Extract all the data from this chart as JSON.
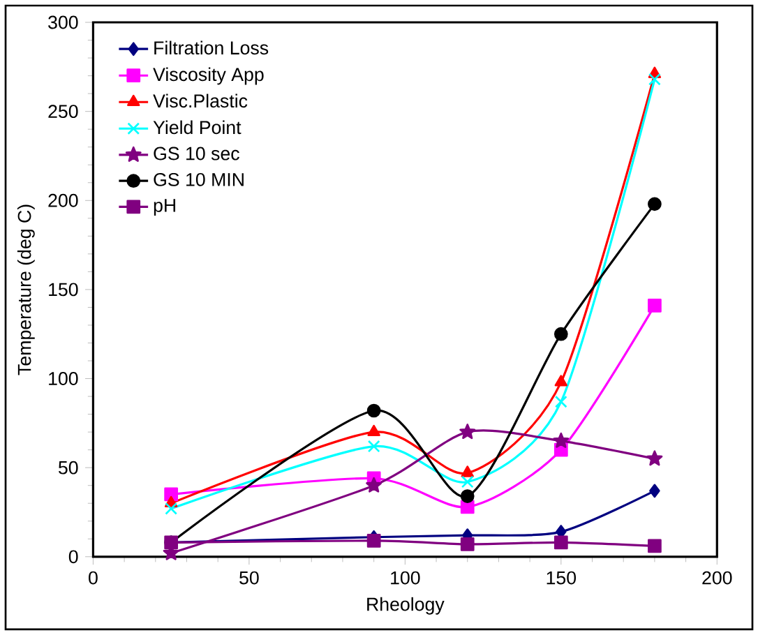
{
  "chart_data": {
    "type": "line",
    "xlabel": "Rheology",
    "ylabel": "Temperature (deg C)",
    "x": [
      25,
      90,
      120,
      150,
      180
    ],
    "xlim": [
      0,
      200
    ],
    "xticks": [
      0,
      50,
      100,
      150,
      200
    ],
    "ylim": [
      0,
      300
    ],
    "yticks": [
      0,
      50,
      100,
      150,
      200,
      250,
      300
    ],
    "grid": false,
    "legend": "top left",
    "line_style": "solid",
    "series": [
      {
        "name": "Filtration Loss",
        "color": "#000080",
        "marker": "diamond",
        "values": [
          8,
          11,
          12,
          14,
          37
        ]
      },
      {
        "name": "Viscosity App",
        "color": "#ff00ff",
        "marker": "square",
        "values": [
          35,
          44,
          28,
          60,
          141
        ]
      },
      {
        "name": "Visc.Plastic",
        "color": "#ff0000",
        "marker": "triangle",
        "values": [
          30,
          70,
          47,
          98,
          271
        ]
      },
      {
        "name": "Yield Point",
        "color": "#00ffff",
        "marker": "cross",
        "values": [
          27,
          62,
          42,
          87,
          268
        ]
      },
      {
        "name": "GS 10 sec",
        "color": "#800080",
        "marker": "star",
        "values": [
          2,
          40,
          70,
          65,
          55
        ]
      },
      {
        "name": "GS 10 MIN",
        "color": "#000000",
        "marker": "circle",
        "values": [
          8,
          82,
          34,
          125,
          198
        ]
      },
      {
        "name": "pH",
        "color": "#800080",
        "marker": "square",
        "values": [
          8,
          9,
          7,
          8,
          6
        ]
      }
    ]
  }
}
